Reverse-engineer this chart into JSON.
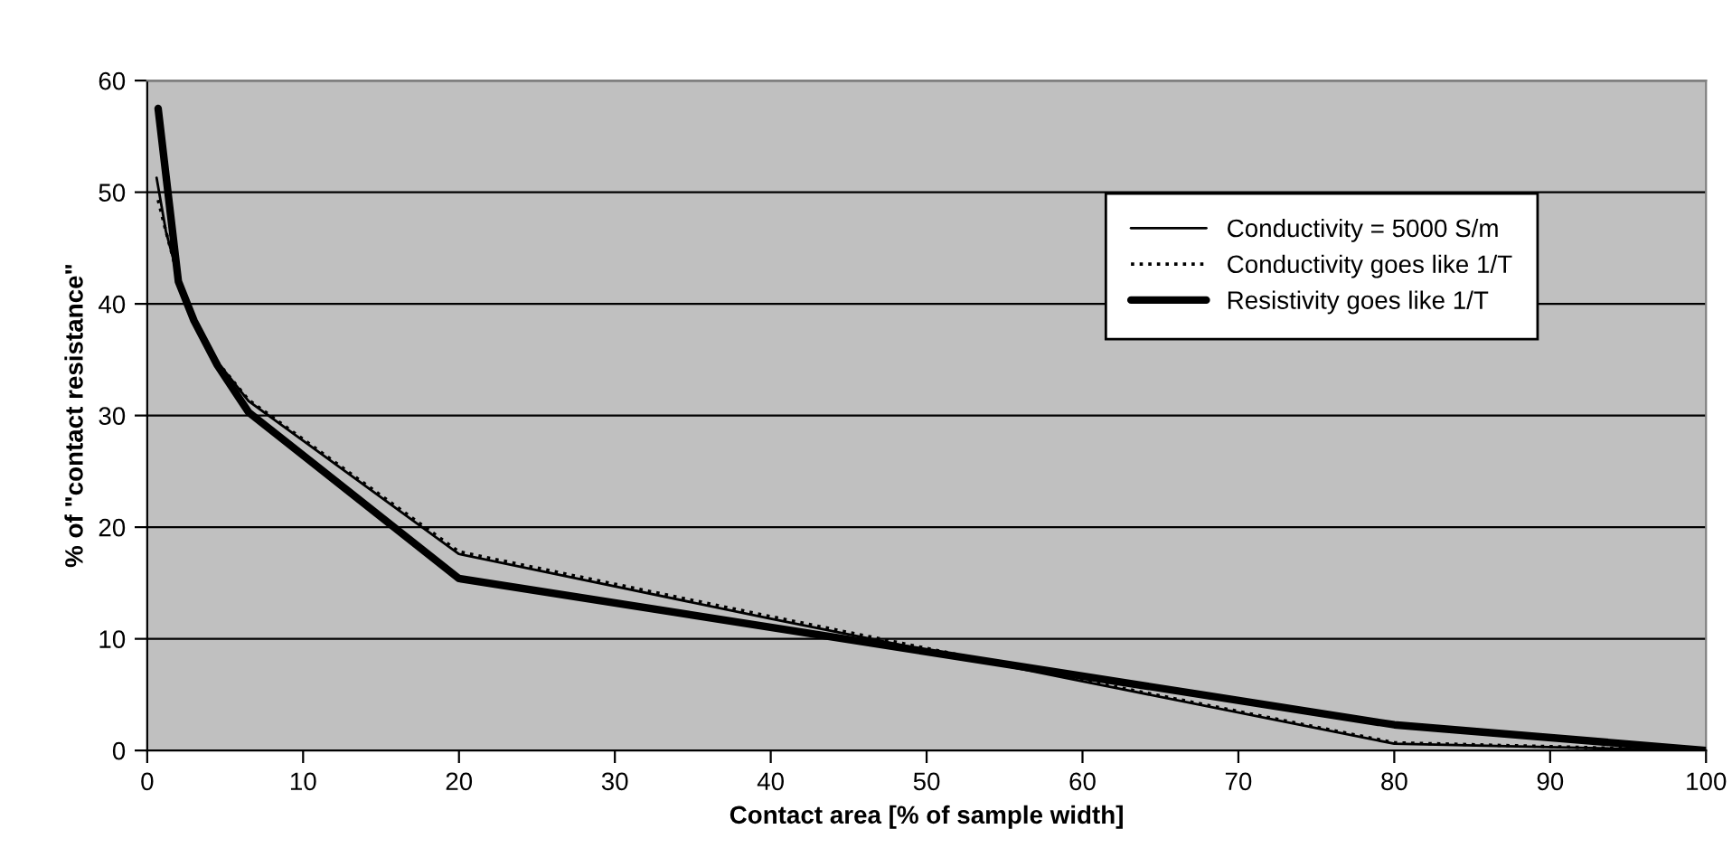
{
  "chart_data": {
    "type": "line",
    "xlabel": "Contact area [% of sample width]",
    "ylabel": "% of \"contact resistance\"",
    "xlim": [
      0,
      100
    ],
    "xticks": [
      0,
      10,
      20,
      30,
      40,
      50,
      60,
      70,
      80,
      90,
      100
    ],
    "ylim": [
      0,
      60
    ],
    "yticks": [
      0,
      10,
      20,
      30,
      40,
      50,
      60
    ],
    "grid": "y",
    "legend": "top right",
    "marker": "none",
    "series": [
      {
        "name": "Conductivity = 5000 S/m",
        "color": "#000000",
        "line_style": "solid",
        "x": [
          0.6,
          1.2,
          2,
          3,
          4.5,
          6.5,
          20,
          40,
          60,
          80,
          100
        ],
        "values": [
          51.3,
          46.5,
          42.3,
          38.8,
          34.8,
          31.3,
          17.6,
          11.8,
          6.2,
          0.6,
          0
        ]
      },
      {
        "name": "Conductivity goes like 1/T",
        "color": "#000000",
        "line_style": "dotted",
        "x": [
          0.7,
          1.2,
          2,
          3,
          4.5,
          6.5,
          20,
          40,
          60,
          80,
          100
        ],
        "values": [
          49.3,
          46.5,
          42.3,
          38.8,
          34.8,
          31.4,
          17.8,
          12.0,
          6.3,
          0.7,
          0
        ]
      },
      {
        "name": "Resistivity goes like 1/T",
        "color": "#000000",
        "line_style": "solid",
        "x": [
          0.7,
          2,
          3,
          4.5,
          6.5,
          20,
          80,
          100
        ],
        "values": [
          57.5,
          42.0,
          38.5,
          34.5,
          30.3,
          15.4,
          2.3,
          0
        ]
      }
    ]
  }
}
